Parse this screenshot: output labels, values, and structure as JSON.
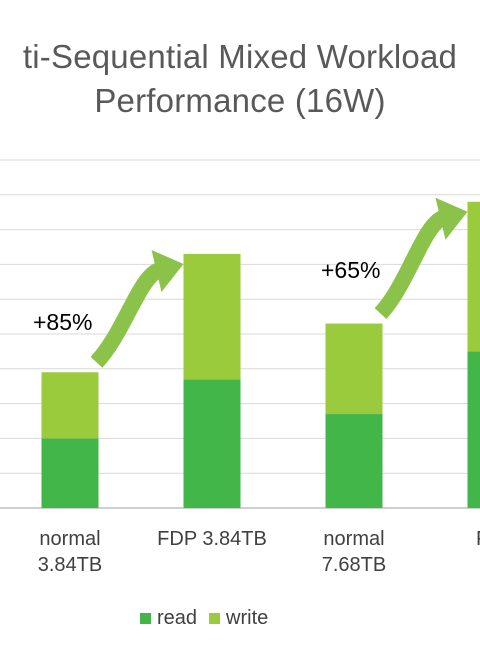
{
  "chart_data": {
    "type": "bar",
    "stacked": true,
    "title_lines": [
      "ti-Sequential Mixed Workload",
      "Performance (16W)"
    ],
    "categories": [
      [
        "normal",
        "3.84TB"
      ],
      [
        "FDP 3.84TB"
      ],
      [
        "normal",
        "7.68TB"
      ],
      [
        "FDP"
      ]
    ],
    "series": [
      {
        "name": "read",
        "color": "#43b649",
        "values": [
          2.0,
          3.7,
          2.7,
          4.5
        ]
      },
      {
        "name": "write",
        "color": "#9acb3c",
        "values": [
          1.9,
          3.6,
          2.6,
          4.3
        ]
      }
    ],
    "ylim": [
      0,
      10
    ],
    "grid": true,
    "annotations": [
      {
        "text": "+85%",
        "from_category": 0,
        "to_category": 1
      },
      {
        "text": "+65%",
        "from_category": 2,
        "to_category": 3
      }
    ],
    "arrow_color": "#8bc34a",
    "legend_position": "bottom"
  }
}
